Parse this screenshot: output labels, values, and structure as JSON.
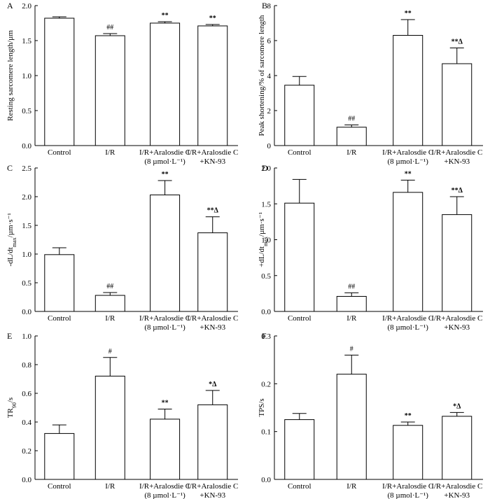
{
  "chart_data": [
    {
      "type": "bar",
      "panel": "A",
      "ylabel": "Resting sarcomere length/µm",
      "ylim": [
        0,
        2.0
      ],
      "yticks": [
        "0.0",
        "0.5",
        "1.0",
        "1.5",
        "2.0"
      ],
      "categories": [
        {
          "line1": "Control",
          "line2": ""
        },
        {
          "line1": "I/R",
          "line2": ""
        },
        {
          "line1": "I/R+Aralosdie C",
          "line2": "(8 µmol·L⁻¹)"
        },
        {
          "line1": "I/R+Aralosdie C",
          "line2": "+KN-93"
        }
      ],
      "values": [
        1.82,
        1.57,
        1.75,
        1.71
      ],
      "errors": [
        0.02,
        0.03,
        0.02,
        0.02
      ],
      "annotations": [
        "",
        "##",
        "**",
        "**"
      ]
    },
    {
      "type": "bar",
      "panel": "B",
      "ylabel": "Peak shortening/% of sarcomere length",
      "ylim": [
        0,
        8
      ],
      "yticks": [
        "0",
        "2",
        "4",
        "6",
        "8"
      ],
      "categories": [
        {
          "line1": "Control",
          "line2": ""
        },
        {
          "line1": "I/R",
          "line2": ""
        },
        {
          "line1": "I/R+Aralosdie C",
          "line2": "(8 µmol·L⁻¹)"
        },
        {
          "line1": "I/R+Aralosdie C",
          "line2": "+KN-93"
        }
      ],
      "values": [
        3.45,
        1.05,
        6.3,
        4.68
      ],
      "errors": [
        0.5,
        0.13,
        0.9,
        0.9
      ],
      "annotations": [
        "",
        "##",
        "**",
        "**Δ"
      ]
    },
    {
      "type": "bar",
      "panel": "C",
      "ylabel": "-dL/dt_max/µm·s⁻¹",
      "ylim": [
        0,
        2.5
      ],
      "yticks": [
        "0.0",
        "0.5",
        "1.0",
        "1.5",
        "2.0",
        "2.5"
      ],
      "categories": [
        {
          "line1": "Control",
          "line2": ""
        },
        {
          "line1": "I/R",
          "line2": ""
        },
        {
          "line1": "I/R+Aralosdie C",
          "line2": "(8 µmol·L⁻¹)"
        },
        {
          "line1": "I/R+Aralosdie C",
          "line2": "+KN-93"
        }
      ],
      "values": [
        0.99,
        0.28,
        2.03,
        1.37
      ],
      "errors": [
        0.12,
        0.05,
        0.25,
        0.28
      ],
      "annotations": [
        "",
        "##",
        "**",
        "**Δ"
      ]
    },
    {
      "type": "bar",
      "panel": "D",
      "ylabel": "+dL/dt_max/µm·s⁻¹",
      "ylim": [
        0,
        2.0
      ],
      "yticks": [
        "0.0",
        "0.5",
        "1.0",
        "1.5",
        "2.0"
      ],
      "categories": [
        {
          "line1": "Control",
          "line2": ""
        },
        {
          "line1": "I/R",
          "line2": ""
        },
        {
          "line1": "I/R+Aralosdie C",
          "line2": "(8 µmol·L⁻¹)"
        },
        {
          "line1": "I/R+Aralosdie C",
          "line2": "+KN-93"
        }
      ],
      "values": [
        1.51,
        0.21,
        1.66,
        1.35
      ],
      "errors": [
        0.33,
        0.05,
        0.17,
        0.25
      ],
      "annotations": [
        "",
        "##",
        "**",
        "**Δ"
      ]
    },
    {
      "type": "bar",
      "panel": "E",
      "ylabel": "TR90/s",
      "ylim": [
        0,
        1.0
      ],
      "yticks": [
        "0.0",
        "0.2",
        "0.4",
        "0.6",
        "0.8",
        "1.0"
      ],
      "categories": [
        {
          "line1": "Control",
          "line2": ""
        },
        {
          "line1": "I/R",
          "line2": ""
        },
        {
          "line1": "I/R+Aralosdie C",
          "line2": "(8 µmol·L⁻¹)"
        },
        {
          "line1": "I/R+Aralosdie C",
          "line2": "+KN-93"
        }
      ],
      "values": [
        0.32,
        0.72,
        0.42,
        0.52
      ],
      "errors": [
        0.06,
        0.13,
        0.07,
        0.1
      ],
      "annotations": [
        "",
        "#",
        "**",
        "*Δ"
      ]
    },
    {
      "type": "bar",
      "panel": "F",
      "ylabel": "TPS/s",
      "ylim": [
        0,
        0.3
      ],
      "yticks": [
        "0.0",
        "0.1",
        "0.2",
        "0.3"
      ],
      "categories": [
        {
          "line1": "Control",
          "line2": ""
        },
        {
          "line1": "I/R",
          "line2": ""
        },
        {
          "line1": "I/R+Aralosdie C",
          "line2": "(8 µmol·L⁻¹)"
        },
        {
          "line1": "I/R+Aralosdie C",
          "line2": "+KN-93"
        }
      ],
      "values": [
        0.125,
        0.22,
        0.113,
        0.132
      ],
      "errors": [
        0.013,
        0.04,
        0.007,
        0.008
      ],
      "annotations": [
        "",
        "#",
        "**",
        "*Δ"
      ]
    }
  ]
}
